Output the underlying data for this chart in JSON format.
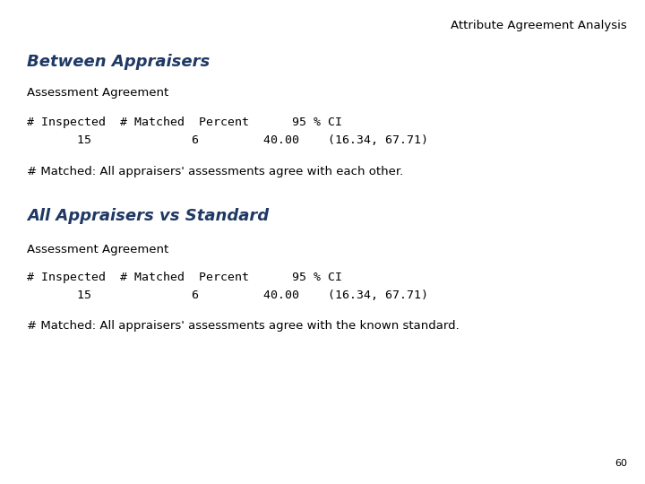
{
  "title": "Attribute Agreement Analysis",
  "title_color": "#000000",
  "title_fontsize": 9.5,
  "background_color": "#ffffff",
  "section1_header": "Between Appraisers",
  "section1_subheader": "Assessment Agreement",
  "section1_col_header": "# Inspected  # Matched  Percent      95 % CI",
  "section1_data_row": "       15              6         40.00    (16.34, 67.71)",
  "section1_footnote": "# Matched: All appraisers' assessments agree with each other.",
  "section2_header": "All Appraisers vs Standard",
  "section2_subheader": "Assessment Agreement",
  "section2_col_header": "# Inspected  # Matched  Percent      95 % CI",
  "section2_data_row": "       15              6         40.00    (16.34, 67.71)",
  "section2_footnote": "# Matched: All appraisers' assessments agree with the known standard.",
  "page_number": "60",
  "header_color": "#1f3864",
  "body_color": "#000000",
  "header_fontsize": 13,
  "subheader_fontsize": 9.5,
  "col_header_fontsize": 9.5,
  "data_fontsize": 9.5,
  "footnote_fontsize": 9.5,
  "page_fontsize": 8
}
